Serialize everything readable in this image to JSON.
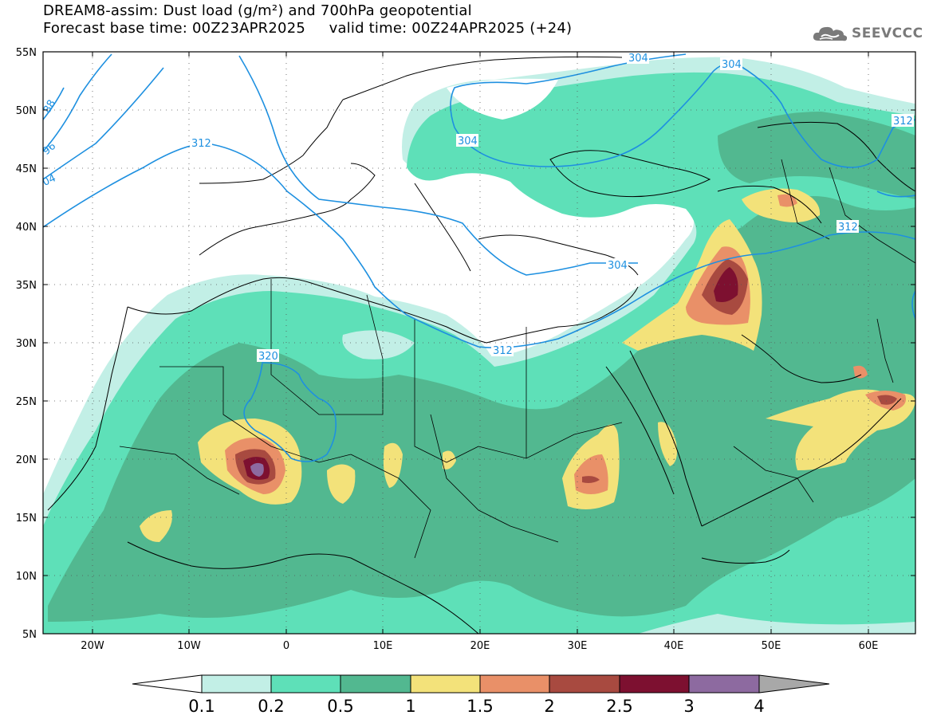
{
  "title": {
    "line1": "DREAM8-assim: Dust load (g/m²) and 700hPa geopotential",
    "line2": "Forecast base time: 00Z23APR2025     valid time: 00Z24APR2025 (+24)"
  },
  "logo": {
    "text": "SEEVCCC",
    "icon": "cloud-icon"
  },
  "map": {
    "lat_labels": [
      "55N",
      "50N",
      "45N",
      "40N",
      "35N",
      "30N",
      "25N",
      "20N",
      "15N",
      "10N",
      "5N"
    ],
    "lon_labels": [
      "20W",
      "10W",
      "0",
      "10E",
      "20E",
      "30E",
      "40E",
      "50E",
      "60E"
    ],
    "lat_range": [
      5,
      55
    ],
    "lon_range": [
      -25,
      65
    ],
    "grid": "dotted",
    "contour_color": "#1e90e0",
    "contour_labels": [
      "304",
      "304",
      "304",
      "304",
      "312",
      "312",
      "312",
      "312",
      "320",
      "88",
      "96",
      "04"
    ]
  },
  "colorbar": {
    "labels": [
      "0.1",
      "0.2",
      "0.5",
      "1",
      "1.5",
      "2",
      "2.5",
      "3",
      "4"
    ],
    "colors": [
      "#ffffff",
      "#c2efe6",
      "#5ee0b8",
      "#52b890",
      "#f3e27a",
      "#e99068",
      "#a84a40",
      "#7d1030",
      "#8d6aa0",
      "#a8a8a8"
    ]
  }
}
